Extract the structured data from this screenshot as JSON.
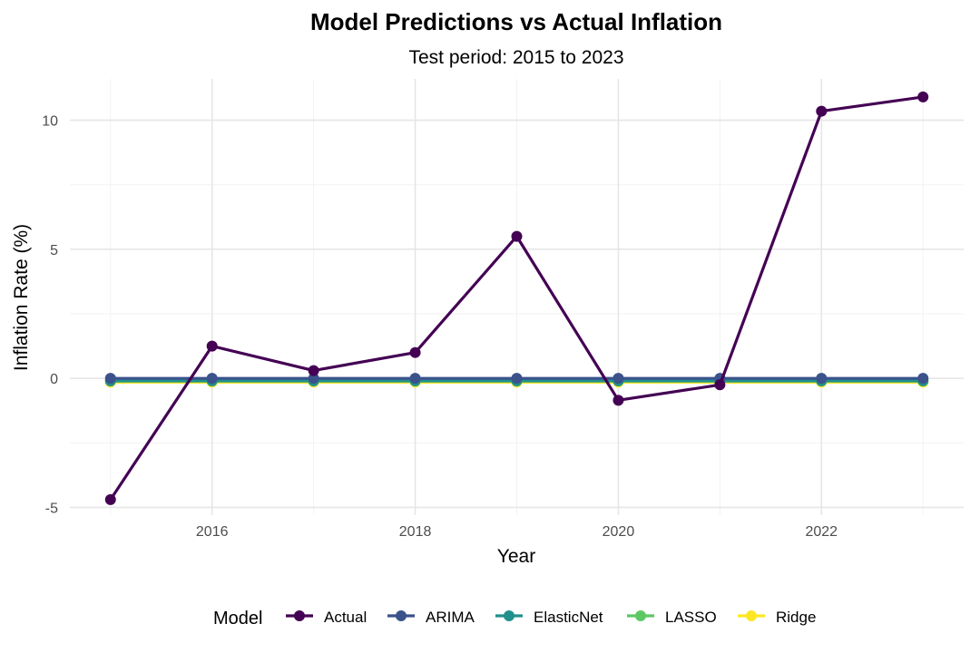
{
  "chart_data": {
    "type": "line",
    "title": "Model Predictions vs Actual Inflation",
    "subtitle": "Test period: 2015 to 2023",
    "xlabel": "Year",
    "ylabel": "Inflation Rate (%)",
    "x": [
      2015,
      2016,
      2017,
      2018,
      2019,
      2020,
      2021,
      2022,
      2023
    ],
    "xlim": [
      2014.6,
      2023.4
    ],
    "ylim": [
      -5.3,
      11.6
    ],
    "x_ticks": [
      2016,
      2018,
      2020,
      2022
    ],
    "x_tick_labels": [
      "2016",
      "2018",
      "2020",
      "2022"
    ],
    "y_ticks": [
      -5,
      0,
      5,
      10
    ],
    "y_tick_labels": [
      "-5",
      "0",
      "5",
      "10"
    ],
    "grid": true,
    "legend": {
      "title": "Model",
      "position": "bottom"
    },
    "series": [
      {
        "name": "Actual",
        "color": "#440154",
        "values": [
          -4.7,
          1.25,
          0.3,
          1.0,
          5.5,
          -0.85,
          -0.25,
          10.35,
          10.9
        ]
      },
      {
        "name": "ARIMA",
        "color": "#3B528B",
        "values": [
          0,
          0,
          0,
          0,
          0,
          0,
          0,
          0,
          0
        ]
      },
      {
        "name": "ElasticNet",
        "color": "#21908C",
        "values": [
          -0.1,
          -0.1,
          -0.1,
          -0.1,
          -0.1,
          -0.1,
          -0.1,
          -0.1,
          -0.1
        ]
      },
      {
        "name": "LASSO",
        "color": "#5DC863",
        "values": [
          -0.1,
          -0.1,
          -0.1,
          -0.1,
          -0.1,
          -0.1,
          -0.1,
          -0.1,
          -0.1
        ]
      },
      {
        "name": "Ridge",
        "color": "#FDE725",
        "values": [
          -0.15,
          -0.15,
          -0.15,
          -0.15,
          -0.15,
          -0.15,
          -0.15,
          -0.15,
          -0.15
        ]
      }
    ]
  }
}
